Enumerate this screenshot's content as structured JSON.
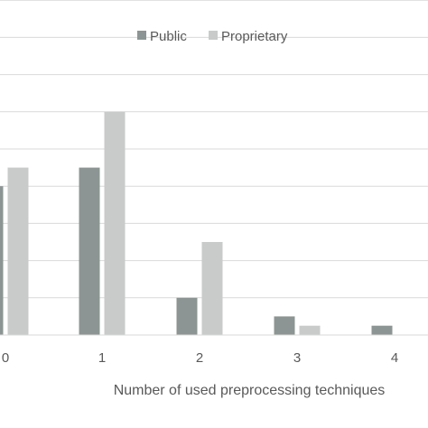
{
  "chart_data": {
    "type": "bar",
    "categories": [
      "0",
      "1",
      "2",
      "3",
      "4"
    ],
    "series": [
      {
        "name": "Public",
        "values": [
          8,
          9,
          2,
          1,
          0.5
        ],
        "color": "#8c9593"
      },
      {
        "name": "Proprietary",
        "values": [
          9,
          12,
          5,
          0.5,
          0
        ],
        "color": "#c8cbca"
      }
    ],
    "xlabel": "Number of used preprocessing techniques",
    "ylabel": "",
    "ylim": [
      0,
      18
    ],
    "grid": true,
    "legend": "top-center"
  }
}
